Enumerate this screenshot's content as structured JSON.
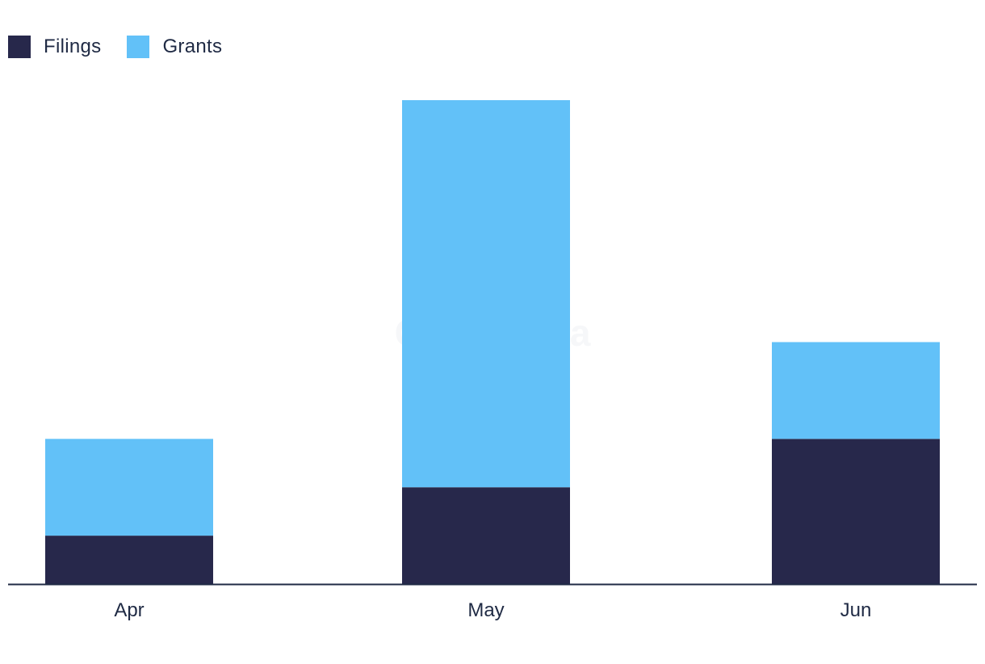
{
  "chart_data": {
    "type": "bar",
    "stacked": true,
    "categories": [
      "Apr",
      "May",
      "Jun"
    ],
    "series": [
      {
        "name": "Filings",
        "color": "#27284b",
        "values": [
          1,
          2,
          3
        ]
      },
      {
        "name": "Grants",
        "color": "#62c1f8",
        "values": [
          2,
          8,
          2
        ]
      }
    ],
    "ylim": [
      0,
      10
    ],
    "grid": false,
    "legend_position": "top-left",
    "watermark": "GlobalData"
  }
}
